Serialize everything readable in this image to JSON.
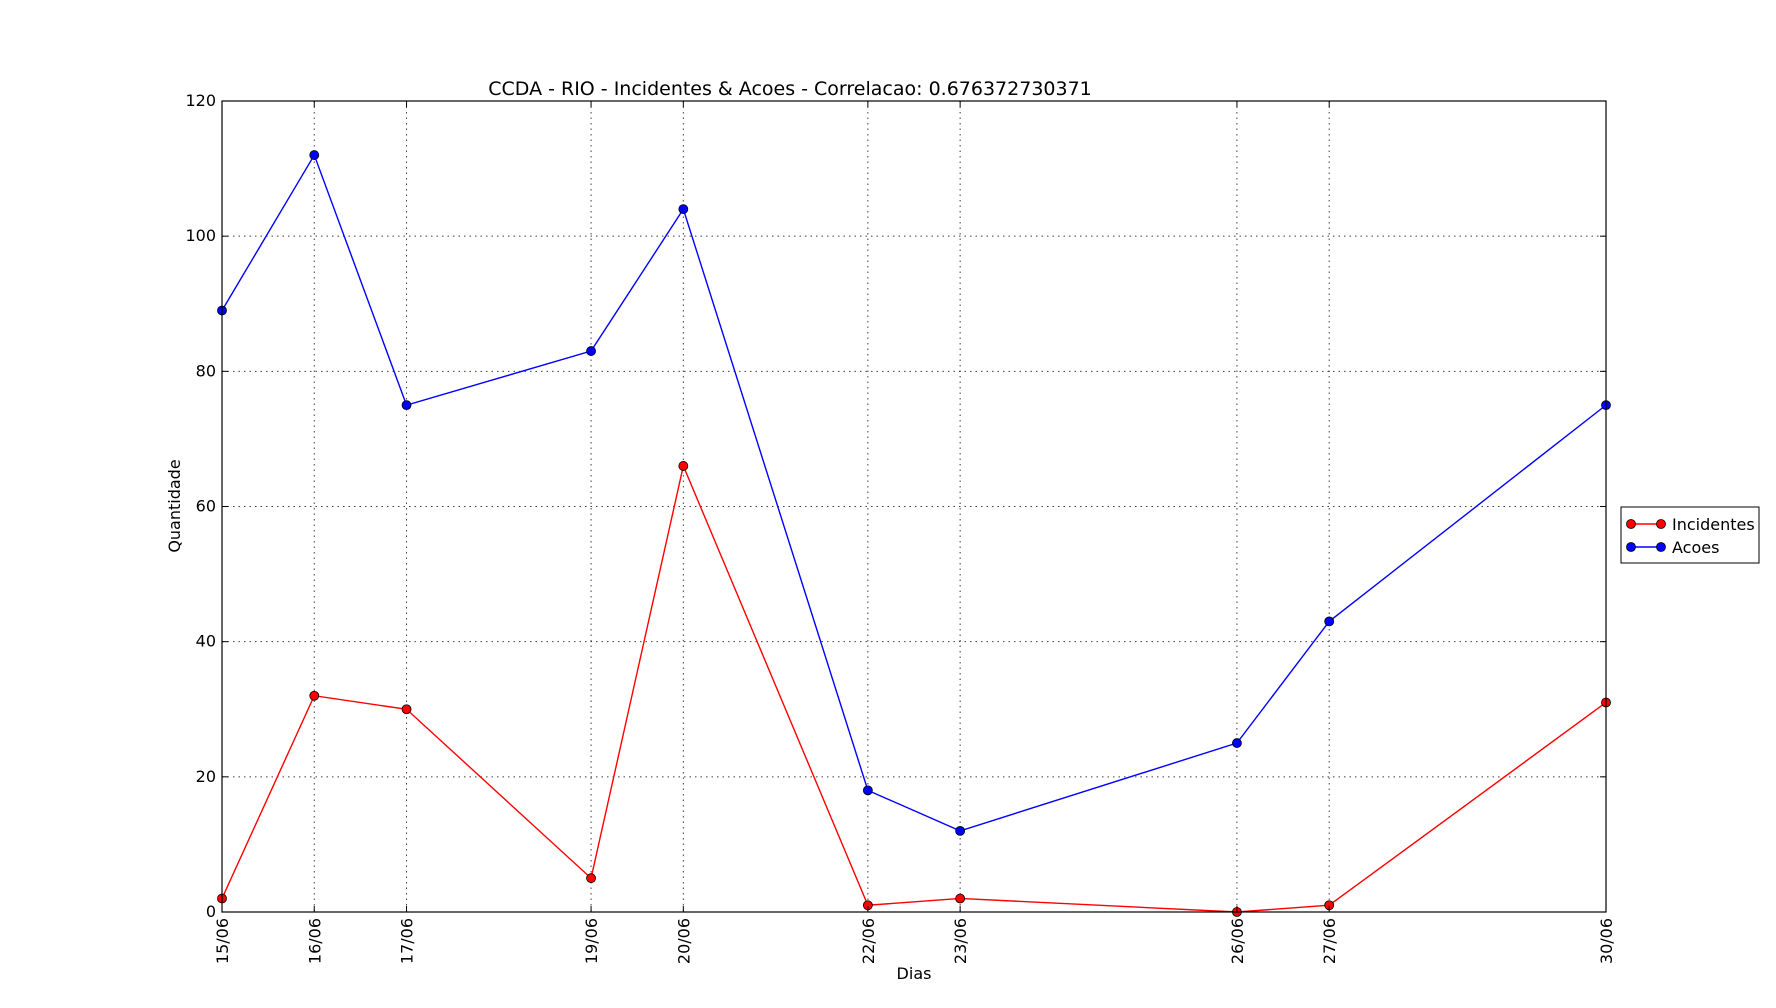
{
  "chart_data": {
    "type": "line",
    "title": "CCDA - RIO - Incidentes & Acoes - Correlacao: 0.676372730371",
    "xlabel": "Dias",
    "ylabel": "Quantidade",
    "x_dates": [
      "15/06",
      "16/06",
      "17/06",
      "19/06",
      "20/06",
      "22/06",
      "23/06",
      "26/06",
      "27/06",
      "30/06"
    ],
    "x_day": [
      15,
      16,
      17,
      19,
      20,
      22,
      23,
      26,
      27,
      30
    ],
    "xlim": [
      15,
      30
    ],
    "ylim": [
      0,
      120
    ],
    "yticks": [
      0,
      20,
      40,
      60,
      80,
      100,
      120
    ],
    "grid": true,
    "legend_position": "right",
    "series": [
      {
        "name": "Incidentes",
        "color": "#ff0000",
        "values": [
          2,
          32,
          30,
          5,
          66,
          1,
          2,
          0,
          1,
          31
        ]
      },
      {
        "name": "Acoes",
        "color": "#0000ff",
        "values": [
          89,
          112,
          75,
          83,
          104,
          18,
          12,
          25,
          43,
          75
        ]
      }
    ]
  }
}
